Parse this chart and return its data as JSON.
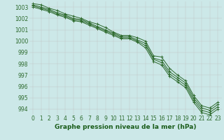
{
  "xlabel": "Graphe pression niveau de la mer (hPa)",
  "x": [
    0,
    1,
    2,
    3,
    4,
    5,
    6,
    7,
    8,
    9,
    10,
    11,
    12,
    13,
    14,
    15,
    16,
    17,
    18,
    19,
    20,
    21,
    22,
    23
  ],
  "lines": [
    [
      1003.3,
      1003.2,
      1002.9,
      1002.7,
      1002.4,
      1002.2,
      1002.0,
      1001.7,
      1001.5,
      1001.2,
      1000.8,
      1000.5,
      1000.5,
      1000.3,
      1000.0,
      998.7,
      998.6,
      997.6,
      997.0,
      996.5,
      995.2,
      994.3,
      994.1,
      994.6
    ],
    [
      1003.2,
      1003.0,
      1002.8,
      1002.5,
      1002.3,
      1002.0,
      1001.9,
      1001.6,
      1001.3,
      1001.0,
      1000.7,
      1000.4,
      1000.4,
      1000.1,
      999.8,
      998.5,
      998.3,
      997.3,
      996.8,
      996.3,
      995.0,
      994.1,
      993.9,
      994.4
    ],
    [
      1003.1,
      1002.9,
      1002.7,
      1002.4,
      1002.2,
      1001.9,
      1001.8,
      1001.5,
      1001.2,
      1000.9,
      1000.6,
      1000.3,
      1000.3,
      1000.0,
      999.6,
      998.4,
      998.1,
      997.1,
      996.6,
      996.1,
      994.8,
      993.9,
      993.7,
      994.2
    ],
    [
      1003.0,
      1002.8,
      1002.6,
      1002.3,
      1002.1,
      1001.8,
      1001.7,
      1001.4,
      1001.1,
      1000.8,
      1000.5,
      1000.2,
      1000.2,
      999.9,
      999.4,
      998.2,
      997.9,
      996.9,
      996.4,
      995.9,
      994.6,
      993.7,
      993.5,
      994.0
    ]
  ],
  "line_color": "#2d6a2d",
  "marker": "+",
  "marker_size": 3,
  "linewidth": 0.7,
  "ylim": [
    993.5,
    1003.5
  ],
  "yticks": [
    994,
    995,
    996,
    997,
    998,
    999,
    1000,
    1001,
    1002,
    1003
  ],
  "xticks": [
    0,
    1,
    2,
    3,
    4,
    5,
    6,
    7,
    8,
    9,
    10,
    11,
    12,
    13,
    14,
    15,
    16,
    17,
    18,
    19,
    20,
    21,
    22,
    23
  ],
  "bg_color": "#cce8e8",
  "grid_color": "#c0c0c0",
  "xlabel_color": "#1a5c1a",
  "xlabel_fontsize": 6.5,
  "tick_fontsize": 5.5,
  "tick_color": "#2d6a2d"
}
